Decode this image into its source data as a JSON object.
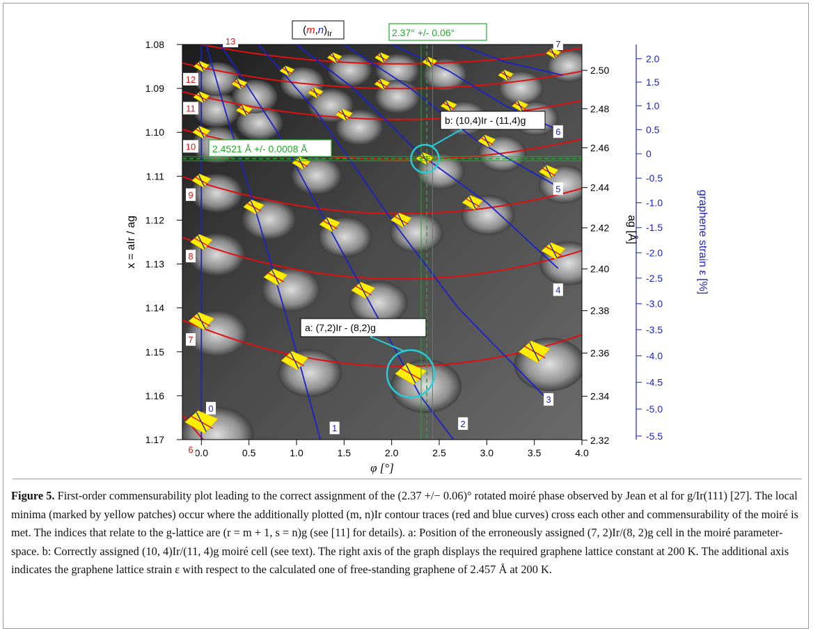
{
  "figure": {
    "label": "Figure 5.",
    "caption": "First-order commensurability plot leading to the correct assignment of the (2.37 +/− 0.06)° rotated moiré phase observed by Jean et al for g/Ir(111) [27]. The local minima (marked by yellow patches) occur where the additionally plotted (m, n)Ir contour traces (red and blue curves) cross each other and commensurability of the moiré is met. The indices that relate to the g-lattice are (r = m + 1, s = n)g (see [11] for details). a: Position of the erroneously assigned (7, 2)Ir/(8, 2)g cell in the moiré parameter-space. b: Correctly assigned (10, 4)Ir/(11, 4)g moiré cell (see text). The right axis of the graph displays the required graphene lattice constant at 200 K. The additional axis indicates the graphene lattice strain ε with respect to the calculated one of free-standing graphene of 2.457 Å at 200 K."
  },
  "chart_data": {
    "type": "heatmap",
    "xlabel": "φ [°]",
    "ylabel_left": "x = aIr / ag",
    "ylabel_right": "ag [Å]",
    "ylabel_strain": "graphene strain ε [%]",
    "xlim": [
      -0.2,
      4.0
    ],
    "ylim_left": [
      1.08,
      1.17
    ],
    "x_ticks": [
      "0.0",
      "0.5",
      "1.0",
      "1.5",
      "2.0",
      "2.5",
      "3.0",
      "3.5",
      "4.0"
    ],
    "x_tick_values": [
      0.0,
      0.5,
      1.0,
      1.5,
      2.0,
      2.5,
      3.0,
      3.5,
      4.0
    ],
    "left_ticks": [
      "1.08",
      "1.09",
      "1.10",
      "1.11",
      "1.12",
      "1.13",
      "1.14",
      "1.15",
      "1.16",
      "1.17"
    ],
    "left_tick_values": [
      1.08,
      1.09,
      1.1,
      1.11,
      1.12,
      1.13,
      1.14,
      1.15,
      1.16,
      1.17
    ],
    "right_ticks": [
      "2.50",
      "2.48",
      "2.46",
      "2.44",
      "2.42",
      "2.40",
      "2.38",
      "2.36",
      "2.34",
      "2.32"
    ],
    "right_tick_values": [
      2.5,
      2.48,
      2.46,
      2.44,
      2.42,
      2.4,
      2.38,
      2.36,
      2.34,
      2.32
    ],
    "strain_ticks": [
      "2.0",
      "1.5",
      "1.0",
      "0.5",
      "0",
      "-0.5",
      "-1.0",
      "-1.5",
      "-2.0",
      "-2.5",
      "-3.0",
      "-3.5",
      "-4.0",
      "-4.5",
      "-5.0",
      "-5.5"
    ],
    "strain_tick_values": [
      2.0,
      1.5,
      1.0,
      0.5,
      0,
      -0.5,
      -1.0,
      -1.5,
      -2.0,
      -2.5,
      -3.0,
      -3.5,
      -4.0,
      -4.5,
      -5.0,
      -5.5
    ],
    "legend_title": "(m,n)Ir",
    "phi_marker": {
      "label": "2.37° +/- 0.06°",
      "value": 2.37,
      "uncertainty": 0.06
    },
    "lattice_marker": {
      "label": "2.4521 Å +/- 0.0008 Å",
      "value": 2.4521,
      "uncertainty": 0.0008,
      "x_value": 1.106
    },
    "red_contours": [
      {
        "m": 6,
        "label": "6",
        "x_at_phi0": 1.1695,
        "curvature": 0.006
      },
      {
        "m": 7,
        "label": "7",
        "x_at_phi0": 1.1445,
        "curvature": 0.002
      },
      {
        "m": 8,
        "label": "8",
        "x_at_phi0": 1.1255,
        "curvature": 0.0018
      },
      {
        "m": 9,
        "label": "9",
        "x_at_phi0": 1.1115,
        "curvature": 0.0016
      },
      {
        "m": 10,
        "label": "10",
        "x_at_phi0": 1.1005,
        "curvature": 0.0013
      },
      {
        "m": 11,
        "label": "11",
        "x_at_phi0": 1.0918,
        "curvature": 0.0012
      },
      {
        "m": 12,
        "label": "12",
        "x_at_phi0": 1.0852,
        "curvature": 0.0011
      },
      {
        "m": 13,
        "label": "13",
        "x_at_phi0": 1.08,
        "curvature": 0.001
      }
    ],
    "blue_contours": [
      {
        "n": 0,
        "label": "0",
        "points": [
          [
            0.0,
            1.08
          ],
          [
            0.0,
            1.17
          ]
        ]
      },
      {
        "n": 1,
        "label": "1",
        "points": [
          [
            0.05,
            1.08
          ],
          [
            0.25,
            1.095
          ],
          [
            0.6,
            1.12
          ],
          [
            1.0,
            1.15
          ],
          [
            1.25,
            1.17
          ]
        ]
      },
      {
        "n": 2,
        "label": "2",
        "points": [
          [
            0.2,
            1.08
          ],
          [
            0.8,
            1.1
          ],
          [
            1.3,
            1.12
          ],
          [
            1.8,
            1.14
          ],
          [
            2.3,
            1.16
          ],
          [
            2.65,
            1.17
          ]
        ]
      },
      {
        "n": 3,
        "label": "3",
        "points": [
          [
            0.6,
            1.08
          ],
          [
            1.2,
            1.095
          ],
          [
            2.0,
            1.12
          ],
          [
            2.7,
            1.14
          ],
          [
            3.6,
            1.16
          ]
        ]
      },
      {
        "n": 4,
        "label": "4",
        "points": [
          [
            1.0,
            1.08
          ],
          [
            1.6,
            1.09
          ],
          [
            2.3,
            1.105
          ],
          [
            3.0,
            1.116
          ],
          [
            3.75,
            1.131
          ]
        ]
      },
      {
        "n": 5,
        "label": "5",
        "points": [
          [
            1.5,
            1.08
          ],
          [
            2.2,
            1.09
          ],
          [
            2.9,
            1.102
          ],
          [
            3.55,
            1.11
          ],
          [
            3.8,
            1.113
          ]
        ]
      },
      {
        "n": 6,
        "label": "6",
        "points": [
          [
            2.0,
            1.08
          ],
          [
            2.6,
            1.086
          ],
          [
            3.2,
            1.094
          ],
          [
            3.8,
            1.1
          ]
        ]
      },
      {
        "n": 7,
        "label": "7",
        "points": [
          [
            2.7,
            1.08
          ],
          [
            3.2,
            1.084
          ],
          [
            3.8,
            1.087
          ]
        ]
      }
    ],
    "minima": [
      {
        "phi": 0.0,
        "x": 1.166,
        "size": 1.5
      },
      {
        "phi": 0.0,
        "x": 1.143,
        "size": 1.0
      },
      {
        "phi": 0.0,
        "x": 1.125,
        "size": 0.8
      },
      {
        "phi": 0.0,
        "x": 1.111,
        "size": 0.6
      },
      {
        "phi": 0.0,
        "x": 1.1,
        "size": 0.5
      },
      {
        "phi": 0.0,
        "x": 1.092,
        "size": 0.4
      },
      {
        "phi": 0.0,
        "x": 1.085,
        "size": 0.35
      },
      {
        "phi": 0.78,
        "x": 1.133,
        "size": 0.9
      },
      {
        "phi": 0.98,
        "x": 1.152,
        "size": 1.1
      },
      {
        "phi": 0.55,
        "x": 1.117,
        "size": 0.7
      },
      {
        "phi": 1.7,
        "x": 1.136,
        "size": 0.9
      },
      {
        "phi": 2.2,
        "x": 1.155,
        "size": 1.4
      },
      {
        "phi": 1.35,
        "x": 1.121,
        "size": 0.7
      },
      {
        "phi": 2.1,
        "x": 1.12,
        "size": 0.7
      },
      {
        "phi": 1.05,
        "x": 1.107,
        "size": 0.55
      },
      {
        "phi": 2.35,
        "x": 1.106,
        "size": 0.5
      },
      {
        "phi": 1.5,
        "x": 1.096,
        "size": 0.45
      },
      {
        "phi": 0.45,
        "x": 1.095,
        "size": 0.4
      },
      {
        "phi": 0.4,
        "x": 1.089,
        "size": 0.35
      },
      {
        "phi": 0.9,
        "x": 1.086,
        "size": 0.3
      },
      {
        "phi": 1.4,
        "x": 1.083,
        "size": 0.3
      },
      {
        "phi": 1.9,
        "x": 1.083,
        "size": 0.3
      },
      {
        "phi": 1.9,
        "x": 1.089,
        "size": 0.35
      },
      {
        "phi": 1.2,
        "x": 1.091,
        "size": 0.35
      },
      {
        "phi": 2.85,
        "x": 1.116,
        "size": 0.7
      },
      {
        "phi": 3.0,
        "x": 1.102,
        "size": 0.5
      },
      {
        "phi": 2.6,
        "x": 1.094,
        "size": 0.4
      },
      {
        "phi": 2.4,
        "x": 1.084,
        "size": 0.3
      },
      {
        "phi": 3.35,
        "x": 1.094,
        "size": 0.4
      },
      {
        "phi": 3.65,
        "x": 1.109,
        "size": 0.6
      },
      {
        "phi": 3.7,
        "x": 1.127,
        "size": 0.9
      },
      {
        "phi": 3.5,
        "x": 1.15,
        "size": 1.4
      },
      {
        "phi": 3.2,
        "x": 1.087,
        "size": 0.35
      },
      {
        "phi": 3.7,
        "x": 1.082,
        "size": 0.3
      }
    ],
    "annotations": [
      {
        "id": "a",
        "label": "a: (7,2)Ir - (8,2)g",
        "phi": 2.2,
        "x": 1.155
      },
      {
        "id": "b",
        "label": "b: (10,4)Ir - (11,4)g",
        "phi": 2.35,
        "x": 1.106
      }
    ],
    "colors": {
      "red": "#e01010",
      "blue": "#1a22c8",
      "cyan": "#22cfd8",
      "green": "#1faa2a",
      "yellow": "#ffee00",
      "strain_axis": "#1a22c8"
    }
  }
}
